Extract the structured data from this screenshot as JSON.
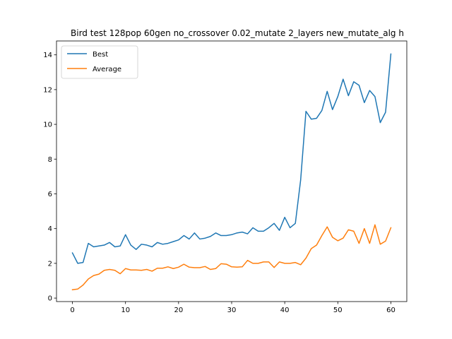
{
  "chart_data": {
    "type": "line",
    "title": "Bird test 128pop 60gen no_crossover 0.02_mutate 2_layers new_mutate_alg h",
    "xlabel": "",
    "ylabel": "",
    "xlim": [
      -3,
      63
    ],
    "ylim": [
      -0.2,
      14.8
    ],
    "xticks": [
      0,
      10,
      20,
      30,
      40,
      50,
      60
    ],
    "yticks": [
      0,
      2,
      4,
      6,
      8,
      10,
      12,
      14
    ],
    "legend_position": "upper-left",
    "grid": false,
    "series": [
      {
        "name": "Best",
        "color": "#1f77b4",
        "x": [
          0,
          1,
          2,
          3,
          4,
          5,
          6,
          7,
          8,
          9,
          10,
          11,
          12,
          13,
          14,
          15,
          16,
          17,
          18,
          19,
          20,
          21,
          22,
          23,
          24,
          25,
          26,
          27,
          28,
          29,
          30,
          31,
          32,
          33,
          34,
          35,
          36,
          37,
          38,
          39,
          40,
          41,
          42,
          43,
          44,
          45,
          46,
          47,
          48,
          49,
          50,
          51,
          52,
          53,
          54,
          55,
          56,
          57,
          58,
          59,
          60
        ],
        "values": [
          2.6,
          2.0,
          2.05,
          3.15,
          2.95,
          3.0,
          3.05,
          3.2,
          2.95,
          3.0,
          3.65,
          3.05,
          2.8,
          3.1,
          3.05,
          2.95,
          3.2,
          3.1,
          3.15,
          3.25,
          3.35,
          3.6,
          3.4,
          3.75,
          3.4,
          3.45,
          3.55,
          3.75,
          3.6,
          3.6,
          3.65,
          3.75,
          3.8,
          3.7,
          4.05,
          3.85,
          3.85,
          4.05,
          4.3,
          3.9,
          4.65,
          4.05,
          4.3,
          6.8,
          10.75,
          10.3,
          10.35,
          10.8,
          11.9,
          10.85,
          11.6,
          12.6,
          11.65,
          12.45,
          12.25,
          11.25,
          11.95,
          11.6,
          10.1,
          10.7,
          14.05
        ]
      },
      {
        "name": "Average",
        "color": "#ff7f0e",
        "x": [
          0,
          1,
          2,
          3,
          4,
          5,
          6,
          7,
          8,
          9,
          10,
          11,
          12,
          13,
          14,
          15,
          16,
          17,
          18,
          19,
          20,
          21,
          22,
          23,
          24,
          25,
          26,
          27,
          28,
          29,
          30,
          31,
          32,
          33,
          34,
          35,
          36,
          37,
          38,
          39,
          40,
          41,
          42,
          43,
          44,
          45,
          46,
          47,
          48,
          49,
          50,
          51,
          52,
          53,
          54,
          55,
          56,
          57,
          58,
          59,
          60
        ],
        "values": [
          0.48,
          0.52,
          0.75,
          1.1,
          1.3,
          1.38,
          1.6,
          1.65,
          1.6,
          1.4,
          1.7,
          1.62,
          1.62,
          1.6,
          1.65,
          1.55,
          1.72,
          1.72,
          1.8,
          1.7,
          1.78,
          1.95,
          1.78,
          1.75,
          1.75,
          1.82,
          1.65,
          1.7,
          1.98,
          1.95,
          1.8,
          1.78,
          1.8,
          2.17,
          2.0,
          2.0,
          2.08,
          2.08,
          1.76,
          2.08,
          2.0,
          2.0,
          2.05,
          1.92,
          2.3,
          2.85,
          3.05,
          3.6,
          4.1,
          3.5,
          3.3,
          3.45,
          3.93,
          3.85,
          3.15,
          4.0,
          3.15,
          4.22,
          3.1,
          3.28,
          4.05
        ]
      }
    ]
  }
}
